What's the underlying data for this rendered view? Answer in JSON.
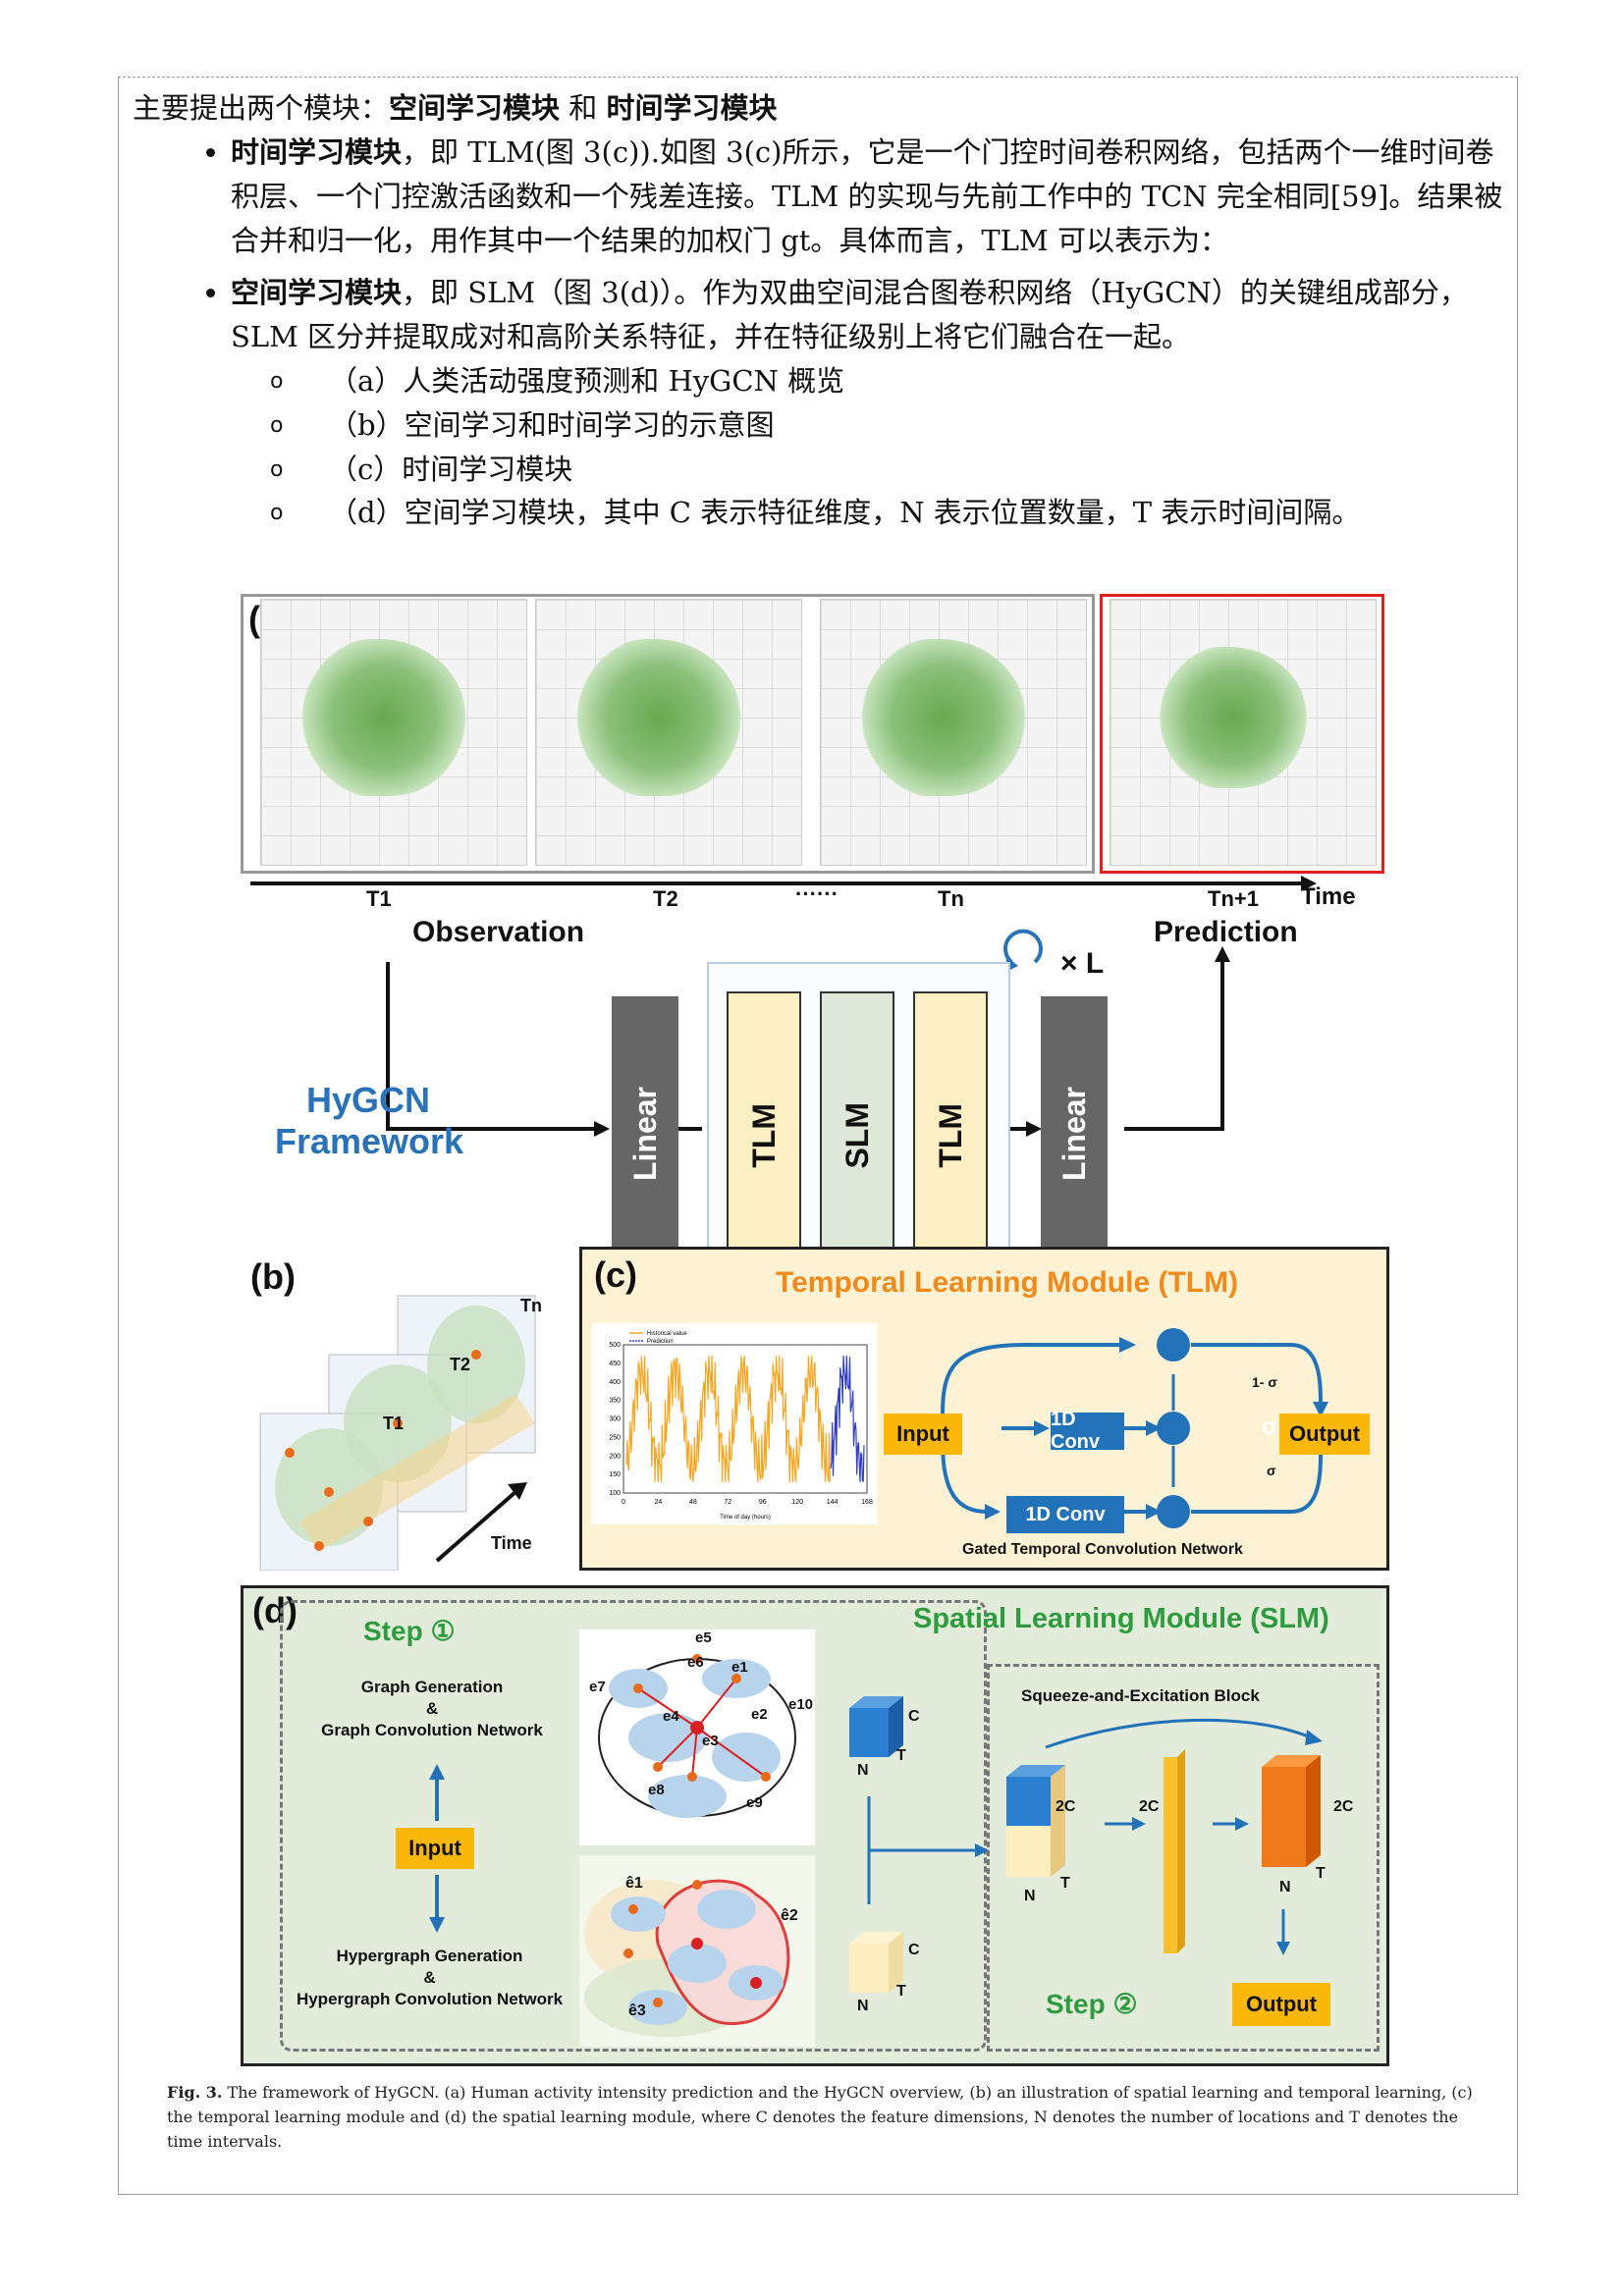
{
  "intro": {
    "lead": "主要提出两个模块：",
    "lead_bold1": "空间学习模块",
    "lead_and": " 和 ",
    "lead_bold2": "时间学习模块"
  },
  "bullets": [
    {
      "bold": "时间学习模块",
      "text": "，即 TLM(图 3(c)).如图 3(c)所示，它是一个门控时间卷积网络，包括两个一维时间卷积层、一个门控激活函数和一个残差连接。TLM 的实现与先前工作中的 TCN 完全相同[59]。结果被合并和归一化，用作其中一个结果的加权门 gt。具体而言，TLM 可以表示为："
    },
    {
      "bold": "空间学习模块",
      "text": "，即 SLM（图 3(d)）。作为双曲空间混合图卷积网络（HyGCN）的关键组成部分，SLM 区分并提取成对和高阶关系特征，并在特征级别上将它们融合在一起。"
    }
  ],
  "sub_items": [
    "（a）人类活动强度预测和 HyGCN 概览",
    "（b）空间学习和时间学习的示意图",
    "（c）时间学习模块",
    "（d）空间学习模块，其中 C 表示特征维度，N 表示位置数量，T 表示时间间隔。"
  ],
  "figure": {
    "a": {
      "label": "(a)",
      "ticks": [
        "T1",
        "T2",
        "······",
        "Tn",
        "Tn+1"
      ],
      "time_label": "Time",
      "observation": "Observation",
      "prediction": "Prediction",
      "loop_label": "× L",
      "framework_line1": "HyGCN",
      "framework_line2": "Framework",
      "linear": "Linear",
      "tlm": "TLM",
      "slm": "SLM",
      "colors": {
        "linear": "#666666",
        "tlm": "#fdefc4",
        "slm": "#dde8d8",
        "framework": "#2a72b8",
        "red_frame": "#e02020"
      }
    },
    "b": {
      "label": "(b)",
      "t1": "T1",
      "t2": "T2",
      "tn": "Tn",
      "time": "Time"
    },
    "c": {
      "label": "(c)",
      "title": "Temporal Learning Module (TLM)",
      "input": "Input",
      "conv": "1D Conv",
      "sigma": "σ",
      "one_minus_sigma": "1- σ",
      "dot": "·",
      "output": "Output",
      "network": "Gated Temporal Convolution Network",
      "legend_hist": "Historical value",
      "legend_pred": "Prediction",
      "x_axis_label": "Time of day (hours)",
      "x_ticks": [
        "0",
        "24",
        "48",
        "72",
        "96",
        "120",
        "144",
        "168"
      ],
      "y_ticks": [
        "100",
        "150",
        "200",
        "250",
        "300",
        "350",
        "400",
        "450",
        "500"
      ],
      "colors": {
        "bg": "#fdf3d4",
        "title": "#f08a1c"
      }
    },
    "d": {
      "label": "(d)",
      "step1": "Step ①",
      "step2": "Step ②",
      "title": "Spatial Learning Module (SLM)",
      "graph_gen": "Graph Generation",
      "amp": "&",
      "graph_conv": "Graph Convolution Network",
      "input": "Input",
      "hyper_gen": "Hypergraph Generation",
      "hyper_conv": "Hypergraph Convolution Network",
      "se_block": "Squeeze-and-Excitation Block",
      "output": "Output",
      "c": "C",
      "n": "N",
      "t": "T",
      "two_c": "2C",
      "edges": [
        "e5",
        "e6",
        "e1",
        "e7",
        "e4",
        "e2",
        "e10",
        "e3",
        "e8",
        "e9"
      ],
      "hyperedges": [
        "ê1",
        "ê2",
        "ê3"
      ],
      "colors": {
        "bg": "#e3ecdb",
        "green": "#2e9b3e"
      }
    }
  },
  "caption": {
    "bold": "Fig. 3.",
    "text": " The framework of HyGCN. (a) Human activity intensity prediction and the HyGCN overview, (b) an illustration of spatial learning and temporal learning, (c) the temporal learning module and (d) the spatial learning module, where C denotes the feature dimensions, N denotes the number of locations and T denotes the time intervals."
  }
}
